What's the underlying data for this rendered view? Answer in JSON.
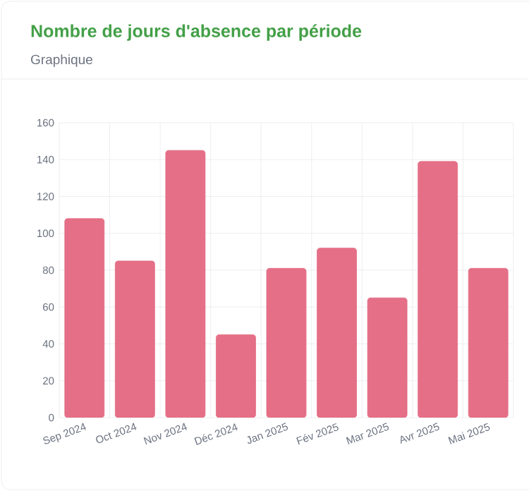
{
  "chart_data": {
    "type": "bar",
    "title": "Nombre de jours d'absence par période",
    "subtitle": "Graphique",
    "categories": [
      "Sep 2024",
      "Oct 2024",
      "Nov 2024",
      "Déc 2024",
      "Jan 2025",
      "Fév 2025",
      "Mar 2025",
      "Avr 2025",
      "Mai 2025"
    ],
    "values": [
      108,
      85,
      145,
      45,
      81,
      92,
      65,
      139,
      81
    ],
    "color": "#e46f86",
    "ylim": [
      0,
      160
    ],
    "yticks": [
      0,
      20,
      40,
      60,
      80,
      100,
      120,
      140,
      160
    ],
    "grid": true
  }
}
